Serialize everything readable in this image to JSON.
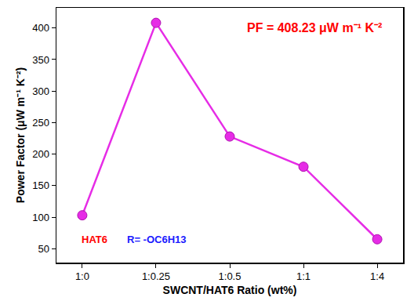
{
  "chart_data": {
    "type": "line",
    "x_label": "SWCNT/HAT6 Ratio (wt%)",
    "y_label": "Power Factor (μW m⁻¹ K⁻²)",
    "categories": [
      "1:0",
      "1:0.25",
      "1:0.5",
      "1:1",
      "1:4"
    ],
    "values": [
      103,
      408.23,
      228,
      180,
      65
    ],
    "color": "#e62ce6",
    "marker": "circle",
    "line_style": "solid",
    "ylim": [
      28,
      432
    ],
    "yticks": [
      50,
      100,
      150,
      200,
      250,
      300,
      350,
      400
    ],
    "grid": false,
    "annotations": [
      {
        "text": "PF = 408.23 μW m⁻¹ K⁻²",
        "color": "#ff0000"
      },
      {
        "text": "HAT6",
        "color": "#ff0000"
      },
      {
        "text": "R= -OC6H13",
        "color": "#1a1aff"
      }
    ]
  }
}
